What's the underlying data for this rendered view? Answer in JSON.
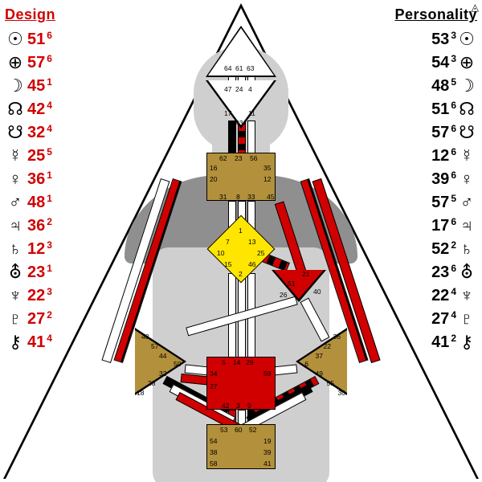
{
  "headers": {
    "design": "Design",
    "personality": "Personality"
  },
  "colors": {
    "design_text": "#d10000",
    "personality_text": "#000000",
    "defined_brown": "#b3903b",
    "defined_yellow": "#ffe600",
    "defined_red": "#d10000",
    "silhouette_light": "#cfcfcf",
    "silhouette_dark": "#8f8f8f",
    "background": "#ffffff"
  },
  "planets_order": [
    "sun",
    "earth",
    "moon",
    "nn",
    "sn",
    "mercury",
    "venus",
    "mars",
    "jupiter",
    "saturn",
    "uranus",
    "neptune",
    "pluto",
    "chiron"
  ],
  "glyphs": {
    "sun": "☉",
    "earth": "⊕",
    "moon": "☽",
    "nn": "☊",
    "sn": "☋",
    "mercury": "☿",
    "venus": "♀",
    "mars": "♂",
    "jupiter": "♃",
    "saturn": "♄",
    "uranus": "⛢",
    "neptune": "♆",
    "pluto": "♇",
    "chiron": "⚷"
  },
  "design": [
    {
      "p": "sun",
      "g": "51",
      "l": "6"
    },
    {
      "p": "earth",
      "g": "57",
      "l": "6"
    },
    {
      "p": "moon",
      "g": "45",
      "l": "1"
    },
    {
      "p": "nn",
      "g": "42",
      "l": "4"
    },
    {
      "p": "sn",
      "g": "32",
      "l": "4"
    },
    {
      "p": "mercury",
      "g": "25",
      "l": "5"
    },
    {
      "p": "venus",
      "g": "36",
      "l": "1"
    },
    {
      "p": "mars",
      "g": "48",
      "l": "1"
    },
    {
      "p": "jupiter",
      "g": "36",
      "l": "2"
    },
    {
      "p": "saturn",
      "g": "12",
      "l": "3"
    },
    {
      "p": "uranus",
      "g": "23",
      "l": "1"
    },
    {
      "p": "neptune",
      "g": "22",
      "l": "3"
    },
    {
      "p": "pluto",
      "g": "27",
      "l": "2"
    },
    {
      "p": "chiron",
      "g": "41",
      "l": "4"
    }
  ],
  "personality": [
    {
      "p": "sun",
      "g": "53",
      "l": "3"
    },
    {
      "p": "earth",
      "g": "54",
      "l": "3"
    },
    {
      "p": "moon",
      "g": "48",
      "l": "5"
    },
    {
      "p": "nn",
      "g": "51",
      "l": "6"
    },
    {
      "p": "sn",
      "g": "57",
      "l": "6"
    },
    {
      "p": "mercury",
      "g": "12",
      "l": "6"
    },
    {
      "p": "venus",
      "g": "39",
      "l": "6"
    },
    {
      "p": "mars",
      "g": "57",
      "l": "5"
    },
    {
      "p": "jupiter",
      "g": "17",
      "l": "6"
    },
    {
      "p": "saturn",
      "g": "52",
      "l": "2"
    },
    {
      "p": "uranus",
      "g": "23",
      "l": "6"
    },
    {
      "p": "neptune",
      "g": "22",
      "l": "4"
    },
    {
      "p": "pluto",
      "g": "27",
      "l": "4"
    },
    {
      "p": "chiron",
      "g": "41",
      "l": "2"
    }
  ],
  "centers": {
    "head": {
      "defined": false,
      "gates": [
        "64",
        "61",
        "63"
      ]
    },
    "ajna": {
      "defined": false,
      "gates": [
        "47",
        "24",
        "4",
        "17",
        "11",
        "43"
      ]
    },
    "throat": {
      "defined": true,
      "color": "#b3903b",
      "gates": [
        "62",
        "23",
        "56",
        "16",
        "35",
        "20",
        "12",
        "31",
        "8",
        "33",
        "45"
      ]
    },
    "g": {
      "defined": true,
      "color": "#ffe600",
      "gates": [
        "1",
        "7",
        "13",
        "10",
        "25",
        "15",
        "46",
        "2"
      ]
    },
    "heart": {
      "defined": true,
      "color": "#d10000",
      "gates": [
        "21",
        "51",
        "26",
        "40"
      ]
    },
    "spleen": {
      "defined": true,
      "color": "#b3903b",
      "gates": [
        "48",
        "57",
        "44",
        "50",
        "32",
        "28",
        "18"
      ]
    },
    "solar": {
      "defined": true,
      "color": "#b3903b",
      "gates": [
        "36",
        "22",
        "37",
        "6",
        "49",
        "55",
        "30"
      ]
    },
    "sacral": {
      "defined": true,
      "color": "#d10000",
      "gates": [
        "5",
        "14",
        "29",
        "34",
        "59",
        "27",
        "42",
        "3",
        "9"
      ]
    },
    "root": {
      "defined": true,
      "color": "#b3903b",
      "gates": [
        "53",
        "60",
        "52",
        "54",
        "19",
        "38",
        "39",
        "58",
        "41"
      ]
    }
  },
  "corner_mark": "◬"
}
